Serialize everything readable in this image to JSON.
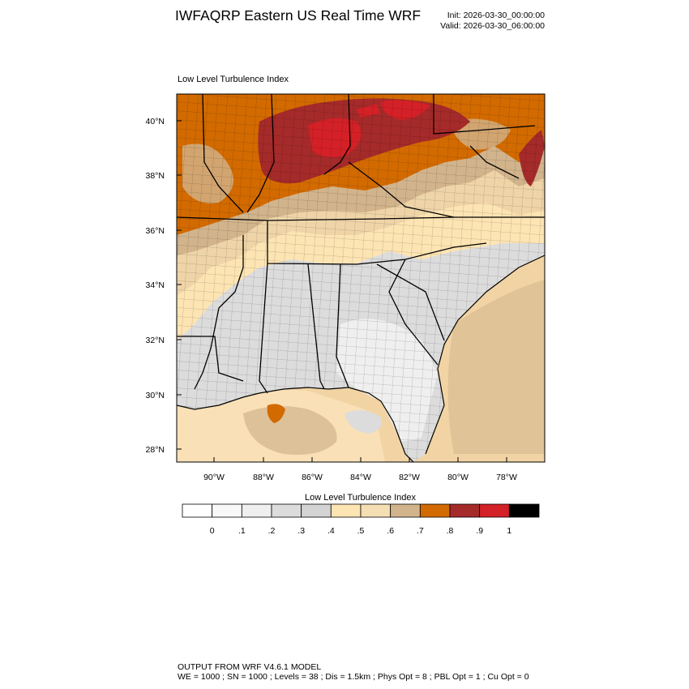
{
  "header": {
    "title": "IWFAQRP Eastern US Real Time WRF",
    "init": "Init: 2026-03-30_00:00:00",
    "valid": "Valid: 2026-03-30_06:00:00"
  },
  "map": {
    "subtitle": "Low Level Turbulence Index",
    "lat_labels": [
      "40°N",
      "38°N",
      "36°N",
      "34°N",
      "32°N",
      "30°N",
      "28°N"
    ],
    "lon_labels": [
      "90°W",
      "88°W",
      "86°W",
      "84°W",
      "82°W",
      "80°W",
      "78°W"
    ],
    "colors": {
      "land_gray": "#dcdcdc",
      "pale_gray": "#efefef",
      "cream": "#fde4b3",
      "tan": "#efd4a8",
      "brown_tan": "#d2b48c",
      "orange": "#d26a00",
      "dark_red": "#a52a2a",
      "red": "#d42027",
      "ocean": "#f2d4a4",
      "gulf": "#f9e0b6"
    }
  },
  "colorbar": {
    "title": "Low Level Turbulence Index",
    "colors": [
      "#ffffff",
      "#f8f8f8",
      "#efefef",
      "#dcdcdc",
      "#d3d3d3",
      "#fde4b3",
      "#f5deb3",
      "#d2b48c",
      "#d26a00",
      "#a52a2a",
      "#d42027",
      "#000000"
    ],
    "tick_labels": [
      "0",
      ".1",
      ".2",
      ".3",
      ".4",
      ".5",
      ".6",
      ".7",
      ".8",
      ".9",
      "1"
    ]
  },
  "footer": {
    "line1": "OUTPUT FROM WRF V4.6.1 MODEL",
    "line2": "WE = 1000 ; SN = 1000 ; Levels = 38 ; Dis = 1.5km ; Phys Opt = 8 ; PBL Opt = 1 ; Cu Opt = 0"
  }
}
